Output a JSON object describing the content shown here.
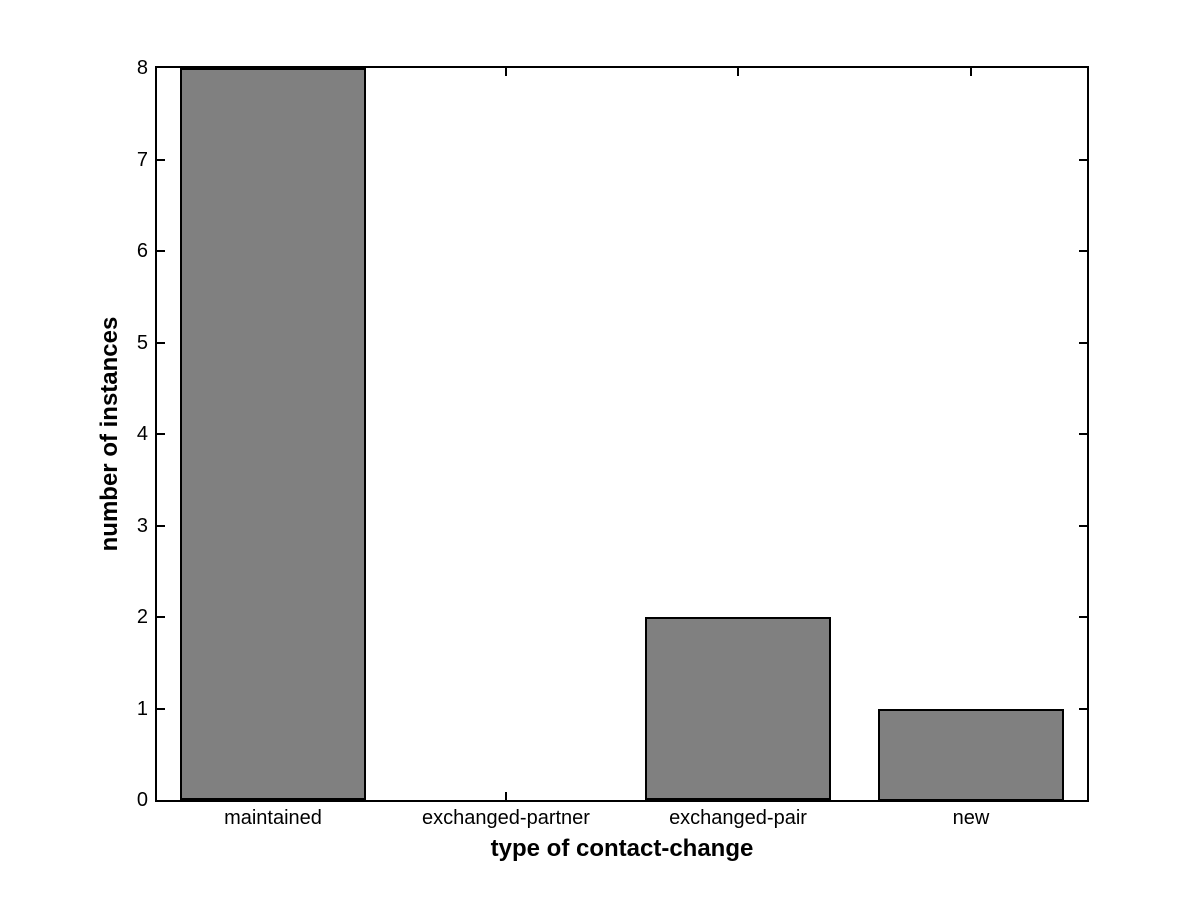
{
  "figure": {
    "background_color": "#ffffff"
  },
  "chart_data": {
    "type": "bar",
    "title": "",
    "categories": [
      "maintained",
      "exchanged-partner",
      "exchanged-pair",
      "new"
    ],
    "values": [
      8,
      0,
      2,
      1
    ],
    "xlabel": "type of contact-change",
    "ylabel": "number of instances",
    "ylim": [
      0,
      8
    ],
    "yticks": [
      0,
      1,
      2,
      3,
      4,
      5,
      6,
      7,
      8
    ],
    "bar_width_fraction": 0.8,
    "grid": false,
    "legend_position": "none",
    "bar_fill_color": "#808080",
    "bar_edge_color": "#000000",
    "axis_color": "#000000",
    "text_color": "#000000"
  }
}
